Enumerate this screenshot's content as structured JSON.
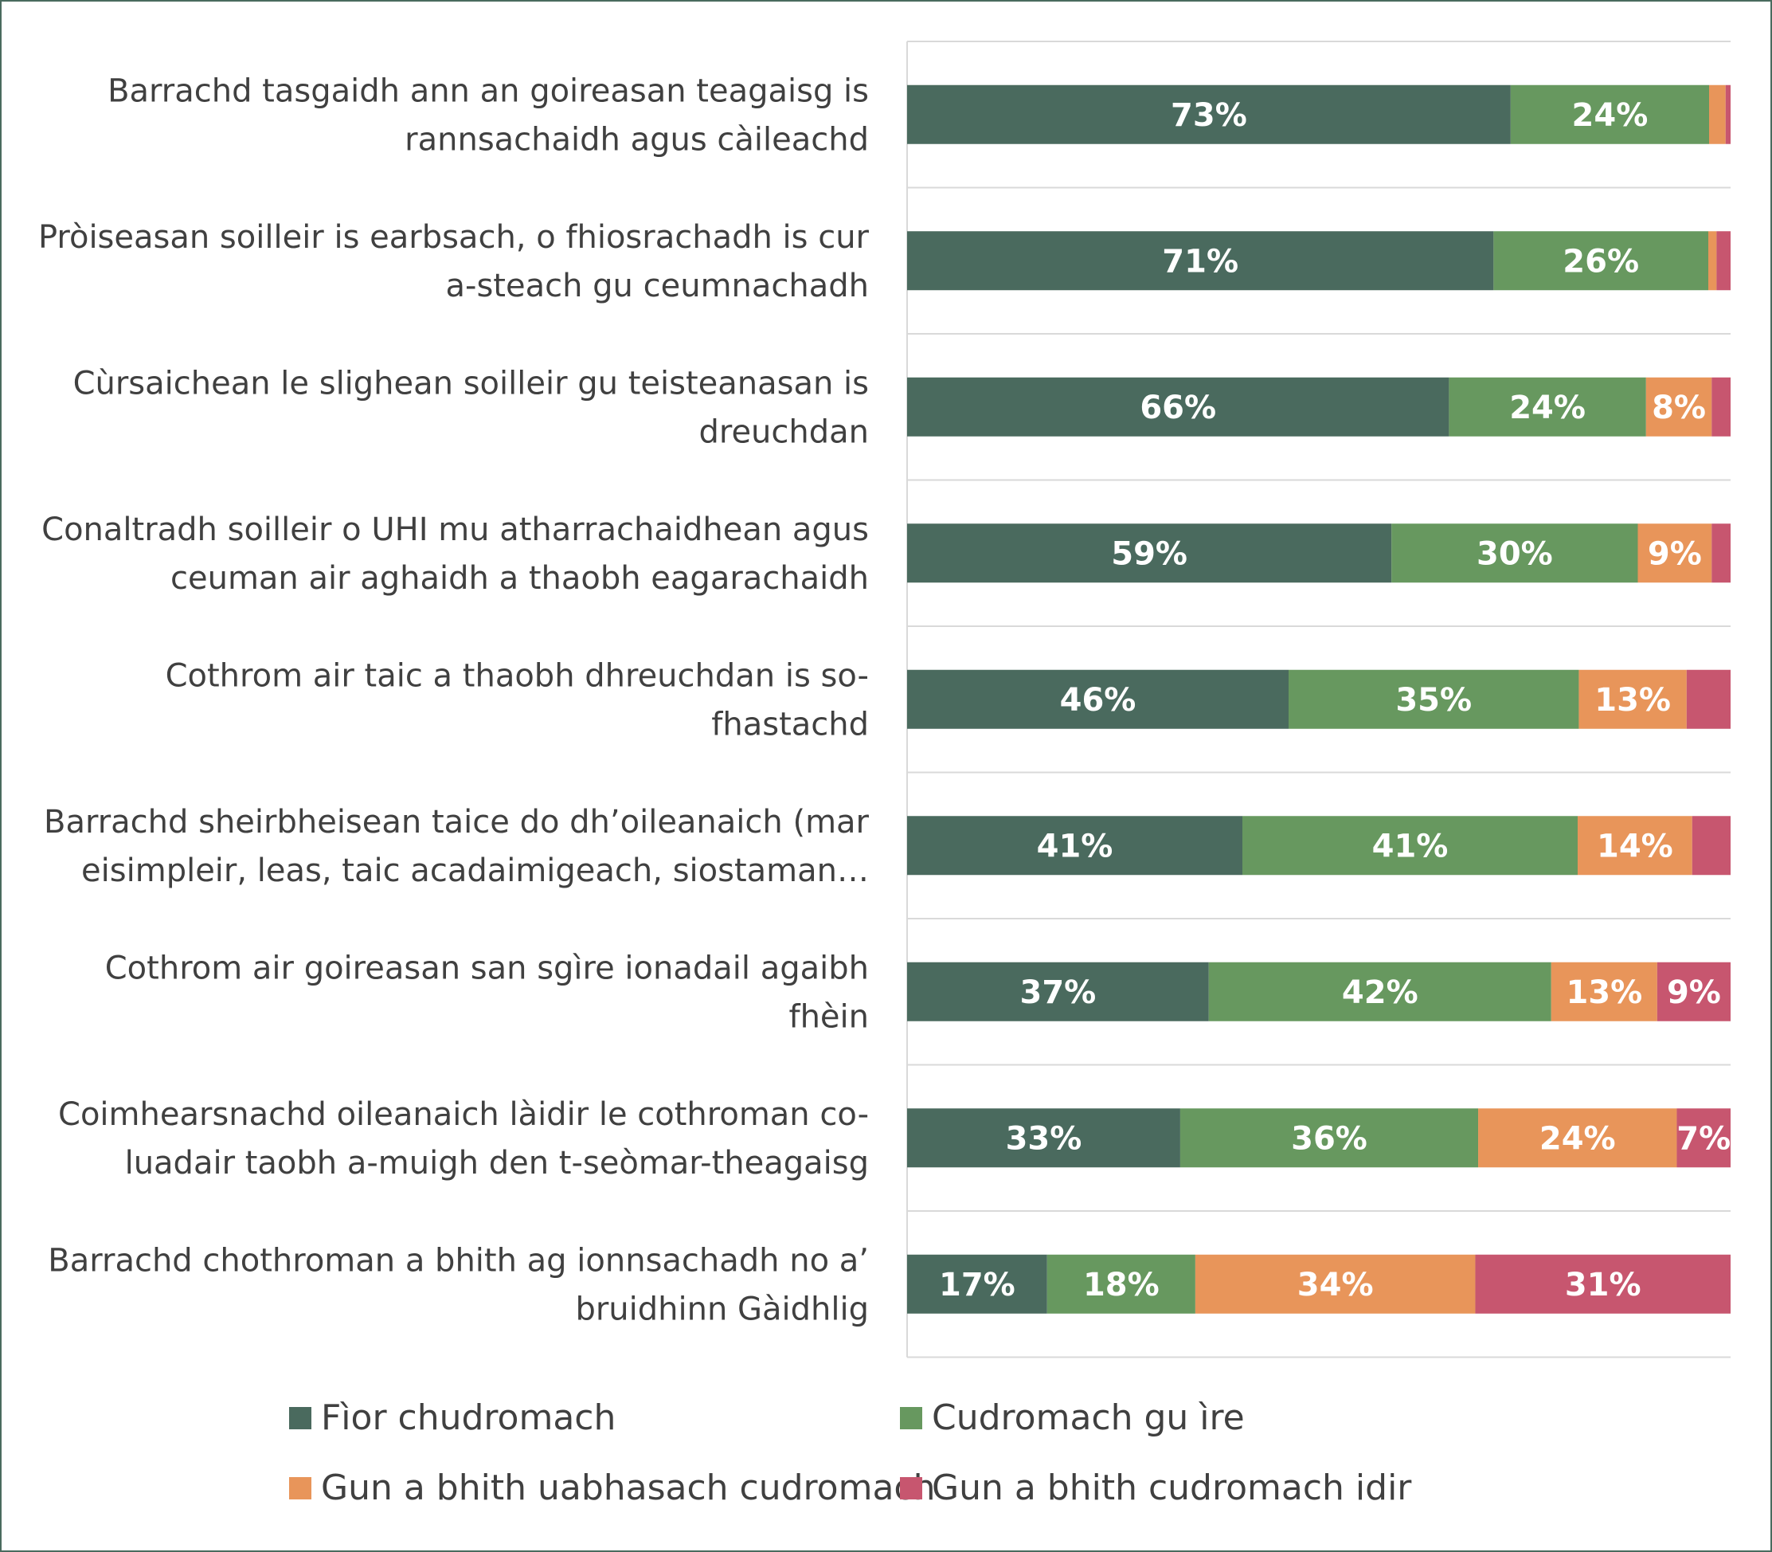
{
  "chart_data": {
    "type": "bar",
    "orientation": "horizontal",
    "stacked": true,
    "normalized_percent": true,
    "title": "",
    "xlabel": "",
    "ylabel": "",
    "xlim": [
      0,
      100
    ],
    "grid": "horizontal separators",
    "legend_position": "bottom",
    "categories": [
      [
        "Barrachd tasgaidh ann an goireasan teagaisg is",
        "rannsachaidh agus càileachd"
      ],
      [
        "Pròiseasan soilleir is earbsach, o fhiosrachadh is cur",
        "a-steach gu ceumnachadh"
      ],
      [
        "Cùrsaichean le slighean soilleir gu teisteanasan is",
        "dreuchdan"
      ],
      [
        "Conaltradh soilleir o UHI mu atharrachaidhean agus",
        "ceuman air aghaidh a thaobh eagarachaidh"
      ],
      [
        "Cothrom air taic a thaobh dhreuchdan is so-",
        "fhastachd"
      ],
      [
        "Barrachd sheirbheisean taice do dh’oileanaich (mar",
        "eisimpleir, leas, taic acadaimigeach, siostaman…"
      ],
      [
        "Cothrom air goireasan san sgìre ionadail agaibh",
        "fhèin"
      ],
      [
        "Coimhearsnachd oileanaich làidir le cothroman co-",
        "luadair taobh a-muigh den t-seòmar-theagaisg"
      ],
      [
        "Barrachd chothroman a bhith ag ionnsachadh no a’",
        "bruidhinn Gàidhlig"
      ]
    ],
    "series": [
      {
        "name": "Fìor chudromach",
        "color": "#4a6a5e",
        "values": [
          73,
          71,
          66,
          59,
          46,
          41,
          37,
          33,
          17
        ],
        "labels": [
          "73%",
          "71%",
          "66%",
          "59%",
          "46%",
          "41%",
          "37%",
          "33%",
          "17%"
        ]
      },
      {
        "name": "Cudromach gu ìre",
        "color": "#67985f",
        "values": [
          24,
          26,
          24,
          30,
          35,
          41,
          42,
          36,
          18
        ],
        "labels": [
          "24%",
          "26%",
          "24%",
          "30%",
          "35%",
          "41%",
          "42%",
          "36%",
          "18%"
        ]
      },
      {
        "name": "Gun a bhith uabhasach cudromach",
        "color": "#e8955a",
        "values": [
          2,
          1,
          8,
          9,
          13,
          14,
          13,
          24,
          34
        ],
        "labels": [
          "",
          "",
          "8%",
          "9%",
          "13%",
          "14%",
          "13%",
          "24%",
          "34%"
        ]
      },
      {
        "name": "Gun a bhith cudromach idir",
        "color": "#c7566f",
        "values": [
          0.6,
          1.7,
          2.3,
          2.3,
          5.3,
          4.7,
          9,
          6.5,
          31
        ],
        "labels": [
          "",
          "",
          "",
          "",
          "",
          "",
          "9%",
          "7%",
          "31%"
        ]
      }
    ]
  }
}
